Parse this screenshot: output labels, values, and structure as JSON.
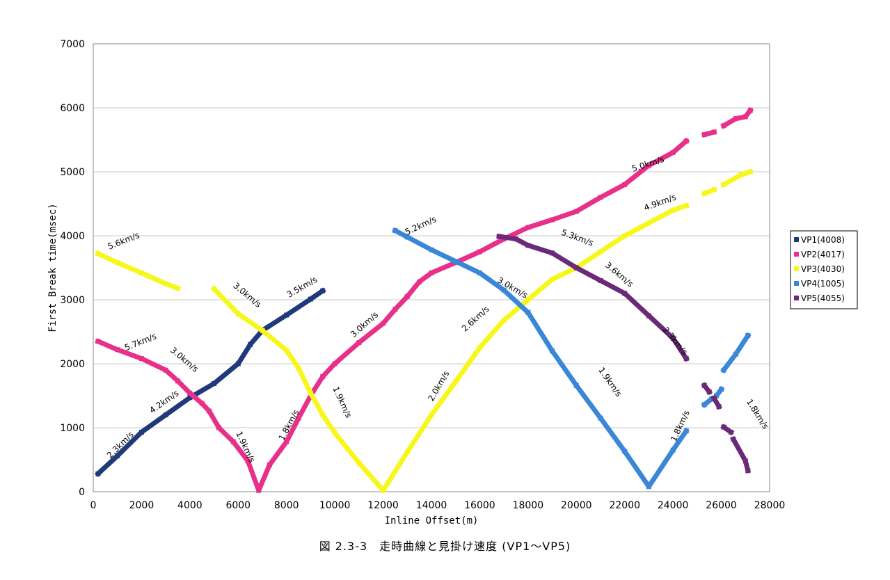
{
  "caption": "図 2.3-3　走時曲線と見掛け速度 (VP1～VP5)",
  "chart_data": {
    "type": "scatter",
    "xlabel": "Inline Offset(m)",
    "ylabel": "First Break time(msec)",
    "xlim": [
      0,
      28000
    ],
    "ylim": [
      0,
      7000
    ],
    "xticks": [
      "0",
      "2000",
      "4000",
      "6000",
      "8000",
      "10000",
      "12000",
      "14000",
      "16000",
      "18000",
      "20000",
      "22000",
      "24000",
      "26000",
      "28000"
    ],
    "yticks": [
      "0",
      "1000",
      "2000",
      "3000",
      "4000",
      "5000",
      "6000",
      "7000"
    ],
    "grid": "horizontal",
    "legend_position": "right",
    "series": [
      {
        "name": "VP1(4008)",
        "color": "#1f3a7a",
        "segments": [
          [
            [
              200,
              280
            ],
            [
              1000,
              560
            ],
            [
              2000,
              930
            ],
            [
              3000,
              1200
            ],
            [
              4000,
              1470
            ],
            [
              5000,
              1690
            ],
            [
              6000,
              2000
            ],
            [
              6500,
              2300
            ],
            [
              7000,
              2520
            ],
            [
              8000,
              2760
            ],
            [
              9000,
              3010
            ],
            [
              9500,
              3140
            ]
          ]
        ]
      },
      {
        "name": "VP2(4017)",
        "color": "#e8308a",
        "segments": [
          [
            [
              200,
              2350
            ],
            [
              1000,
              2220
            ],
            [
              2000,
              2080
            ],
            [
              3000,
              1900
            ],
            [
              3500,
              1730
            ],
            [
              4000,
              1540
            ],
            [
              4500,
              1380
            ],
            [
              4800,
              1260
            ],
            [
              5200,
              1000
            ],
            [
              5800,
              780
            ],
            [
              6400,
              480
            ],
            [
              6850,
              20
            ],
            [
              7300,
              420
            ],
            [
              8000,
              780
            ],
            [
              8500,
              1150
            ],
            [
              9000,
              1500
            ],
            [
              9500,
              1800
            ],
            [
              10000,
              2000
            ],
            [
              11000,
              2330
            ],
            [
              12000,
              2630
            ],
            [
              12500,
              2850
            ],
            [
              13000,
              3050
            ],
            [
              13500,
              3280
            ],
            [
              14000,
              3420
            ],
            [
              15000,
              3580
            ],
            [
              16000,
              3750
            ],
            [
              17000,
              3950
            ],
            [
              18000,
              4130
            ],
            [
              19000,
              4250
            ],
            [
              20000,
              4380
            ],
            [
              21000,
              4600
            ],
            [
              22000,
              4800
            ],
            [
              23000,
              5100
            ],
            [
              24000,
              5300
            ],
            [
              24550,
              5480
            ]
          ],
          [
            [
              25300,
              5580
            ],
            [
              25700,
              5620
            ]
          ],
          [
            [
              26100,
              5720
            ],
            [
              26600,
              5830
            ],
            [
              27000,
              5860
            ],
            [
              27200,
              5960
            ]
          ]
        ]
      },
      {
        "name": "VP3(4030)",
        "color": "#f7f71c",
        "segments": [
          [
            [
              200,
              3720
            ],
            [
              1000,
              3580
            ],
            [
              2000,
              3420
            ],
            [
              3000,
              3250
            ],
            [
              3500,
              3180
            ]
          ],
          [
            [
              5000,
              3170
            ],
            [
              6000,
              2780
            ],
            [
              7000,
              2520
            ],
            [
              8000,
              2210
            ],
            [
              8500,
              1930
            ],
            [
              9000,
              1540
            ],
            [
              9500,
              1200
            ],
            [
              10000,
              920
            ],
            [
              11000,
              450
            ],
            [
              12000,
              20
            ],
            [
              13000,
              620
            ],
            [
              14000,
              1200
            ],
            [
              15000,
              1720
            ],
            [
              16000,
              2250
            ],
            [
              17000,
              2680
            ],
            [
              18000,
              3000
            ],
            [
              19000,
              3320
            ],
            [
              20000,
              3500
            ],
            [
              21000,
              3750
            ],
            [
              22000,
              4000
            ],
            [
              23000,
              4200
            ],
            [
              24000,
              4400
            ],
            [
              24550,
              4470
            ]
          ],
          [
            [
              25300,
              4660
            ],
            [
              25700,
              4720
            ]
          ],
          [
            [
              26100,
              4800
            ],
            [
              26800,
              4950
            ],
            [
              27200,
              5000
            ]
          ]
        ]
      },
      {
        "name": "VP4(1005)",
        "color": "#3a86d8",
        "segments": [
          [
            [
              12500,
              4080
            ],
            [
              13000,
              3980
            ],
            [
              14000,
              3780
            ],
            [
              15000,
              3600
            ],
            [
              16000,
              3420
            ],
            [
              17000,
              3150
            ],
            [
              18000,
              2800
            ],
            [
              19000,
              2200
            ],
            [
              20000,
              1660
            ],
            [
              21000,
              1150
            ],
            [
              22000,
              630
            ],
            [
              23000,
              80
            ],
            [
              24000,
              650
            ],
            [
              24550,
              950
            ]
          ],
          [
            [
              25300,
              1360
            ],
            [
              25600,
              1450
            ]
          ],
          [
            [
              25800,
              1500
            ],
            [
              26000,
              1600
            ]
          ],
          [
            [
              26100,
              1900
            ],
            [
              26600,
              2150
            ],
            [
              27100,
              2440
            ]
          ]
        ]
      },
      {
        "name": "VP5(4055)",
        "color": "#6a2a78",
        "segments": [
          [
            [
              16800,
              3990
            ],
            [
              17500,
              3950
            ],
            [
              18000,
              3850
            ],
            [
              19000,
              3730
            ],
            [
              20000,
              3500
            ],
            [
              21000,
              3300
            ],
            [
              22000,
              3100
            ],
            [
              23000,
              2750
            ],
            [
              24000,
              2400
            ],
            [
              24550,
              2080
            ]
          ],
          [
            [
              25300,
              1660
            ],
            [
              25500,
              1560
            ]
          ],
          [
            [
              25700,
              1460
            ],
            [
              25900,
              1330
            ]
          ],
          [
            [
              26100,
              1010
            ],
            [
              26400,
              930
            ]
          ],
          [
            [
              26500,
              820
            ],
            [
              27000,
              480
            ],
            [
              27100,
              330
            ]
          ]
        ]
      }
    ],
    "annotations": [
      {
        "text": "5.6km/s",
        "x": 1300,
        "y": 3880,
        "angle": -22
      },
      {
        "text": "5.7km/s",
        "x": 2000,
        "y": 2300,
        "angle": -22
      },
      {
        "text": "3.0km/s",
        "x": 3700,
        "y": 2030,
        "angle": 40
      },
      {
        "text": "4.2km/s",
        "x": 3000,
        "y": 1370,
        "angle": -35
      },
      {
        "text": "2.3km/s",
        "x": 1200,
        "y": 700,
        "angle": -45
      },
      {
        "text": "1.9km/s",
        "x": 6200,
        "y": 680,
        "angle": 65
      },
      {
        "text": "1.8km/s",
        "x": 8200,
        "y": 1020,
        "angle": -62
      },
      {
        "text": "3.0km/s",
        "x": 6300,
        "y": 3040,
        "angle": 40
      },
      {
        "text": "3.5km/s",
        "x": 8700,
        "y": 3160,
        "angle": -30
      },
      {
        "text": "1.9km/s",
        "x": 10200,
        "y": 1380,
        "angle": 65
      },
      {
        "text": "3.0km/s",
        "x": 11300,
        "y": 2580,
        "angle": -42
      },
      {
        "text": "5.2km/s",
        "x": 13600,
        "y": 4120,
        "angle": -25
      },
      {
        "text": "3.0km/s",
        "x": 17300,
        "y": 3150,
        "angle": 30
      },
      {
        "text": "2.6km/s",
        "x": 15900,
        "y": 2670,
        "angle": -42
      },
      {
        "text": "2.0km/s",
        "x": 14400,
        "y": 1630,
        "angle": -60
      },
      {
        "text": "1.9km/s",
        "x": 21300,
        "y": 1690,
        "angle": 55
      },
      {
        "text": "1.8km/s",
        "x": 24400,
        "y": 1010,
        "angle": -65
      },
      {
        "text": "5.0km/s",
        "x": 23000,
        "y": 5080,
        "angle": -18
      },
      {
        "text": "4.9km/s",
        "x": 23500,
        "y": 4480,
        "angle": -20
      },
      {
        "text": "5.3km/s",
        "x": 20000,
        "y": 3930,
        "angle": 20
      },
      {
        "text": "3.6km/s",
        "x": 21700,
        "y": 3360,
        "angle": 40
      },
      {
        "text": "2.3km/s",
        "x": 24000,
        "y": 2330,
        "angle": 50
      },
      {
        "text": "1.8km/s",
        "x": 27400,
        "y": 1190,
        "angle": 58
      }
    ]
  }
}
